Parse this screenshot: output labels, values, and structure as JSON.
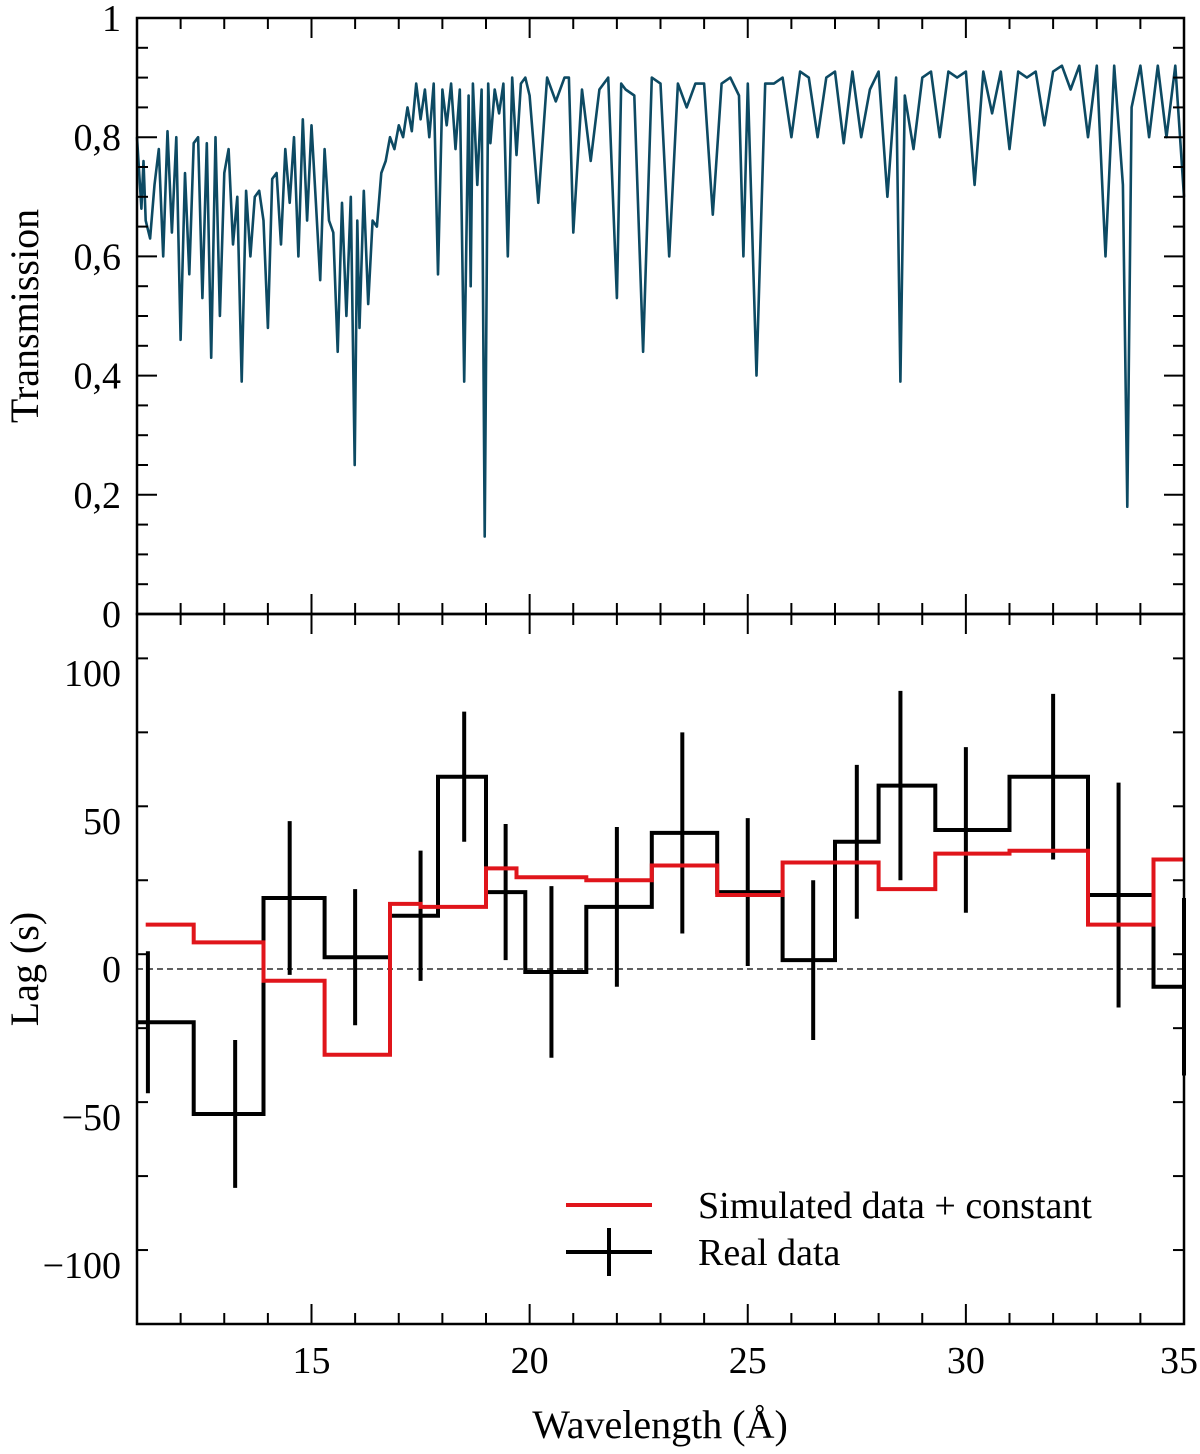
{
  "chart_data": [
    {
      "type": "line",
      "panel": "top",
      "ylabel": "Transmission",
      "xlim": [
        11,
        35
      ],
      "ylim": [
        0,
        1
      ],
      "yticks": [
        {
          "value": 0,
          "label": "0"
        },
        {
          "value": 0.2,
          "label": "0,2"
        },
        {
          "value": 0.4,
          "label": "0,4"
        },
        {
          "value": 0.6,
          "label": "0,6"
        },
        {
          "value": 0.8,
          "label": "0,8"
        },
        {
          "value": 1,
          "label": "1"
        }
      ],
      "series": [
        {
          "color": "#0d4a63",
          "x": [
            11.0,
            11.1,
            11.15,
            11.2,
            11.3,
            11.4,
            11.5,
            11.6,
            11.7,
            11.8,
            11.9,
            12.0,
            12.1,
            12.2,
            12.3,
            12.4,
            12.5,
            12.6,
            12.7,
            12.8,
            12.9,
            13.0,
            13.1,
            13.2,
            13.3,
            13.4,
            13.5,
            13.6,
            13.7,
            13.8,
            13.9,
            14.0,
            14.1,
            14.2,
            14.3,
            14.4,
            14.5,
            14.6,
            14.7,
            14.8,
            14.9,
            15.0,
            15.1,
            15.2,
            15.3,
            15.4,
            15.5,
            15.6,
            15.7,
            15.8,
            15.9,
            15.99,
            16.05,
            16.1,
            16.2,
            16.3,
            16.4,
            16.5,
            16.6,
            16.7,
            16.8,
            16.9,
            17.0,
            17.1,
            17.2,
            17.3,
            17.4,
            17.5,
            17.6,
            17.7,
            17.8,
            17.9,
            18.0,
            18.1,
            18.2,
            18.3,
            18.4,
            18.5,
            18.6,
            18.65,
            18.7,
            18.8,
            18.9,
            18.97,
            19.05,
            19.1,
            19.2,
            19.3,
            19.4,
            19.5,
            19.6,
            19.7,
            19.8,
            19.9,
            20.0,
            20.2,
            20.4,
            20.6,
            20.8,
            20.9,
            21.0,
            21.2,
            21.4,
            21.6,
            21.8,
            22.0,
            22.1,
            22.2,
            22.4,
            22.6,
            22.8,
            23.0,
            23.2,
            23.4,
            23.6,
            23.8,
            24.0,
            24.2,
            24.4,
            24.6,
            24.8,
            24.9,
            25.0,
            25.2,
            25.4,
            25.6,
            25.8,
            26.0,
            26.2,
            26.4,
            26.6,
            26.8,
            27.0,
            27.2,
            27.4,
            27.6,
            27.8,
            28.0,
            28.2,
            28.4,
            28.5,
            28.6,
            28.8,
            29.0,
            29.2,
            29.4,
            29.6,
            29.8,
            30.0,
            30.2,
            30.4,
            30.6,
            30.8,
            31.0,
            31.2,
            31.4,
            31.6,
            31.8,
            32.0,
            32.2,
            32.4,
            32.6,
            32.8,
            33.0,
            33.2,
            33.4,
            33.6,
            33.7,
            33.8,
            34.0,
            34.2,
            34.4,
            34.6,
            34.8,
            35.0
          ],
          "y": [
            0.8,
            0.68,
            0.76,
            0.66,
            0.63,
            0.72,
            0.78,
            0.6,
            0.81,
            0.64,
            0.8,
            0.46,
            0.74,
            0.57,
            0.79,
            0.8,
            0.53,
            0.79,
            0.43,
            0.8,
            0.5,
            0.74,
            0.78,
            0.62,
            0.7,
            0.39,
            0.71,
            0.6,
            0.7,
            0.71,
            0.66,
            0.48,
            0.73,
            0.74,
            0.62,
            0.78,
            0.69,
            0.8,
            0.6,
            0.83,
            0.66,
            0.82,
            0.69,
            0.56,
            0.78,
            0.66,
            0.64,
            0.44,
            0.69,
            0.5,
            0.7,
            0.25,
            0.66,
            0.48,
            0.71,
            0.52,
            0.66,
            0.65,
            0.74,
            0.76,
            0.8,
            0.78,
            0.82,
            0.8,
            0.85,
            0.81,
            0.89,
            0.83,
            0.88,
            0.8,
            0.89,
            0.57,
            0.88,
            0.82,
            0.89,
            0.78,
            0.88,
            0.39,
            0.87,
            0.55,
            0.89,
            0.72,
            0.88,
            0.13,
            0.89,
            0.79,
            0.88,
            0.84,
            0.89,
            0.6,
            0.9,
            0.77,
            0.89,
            0.9,
            0.87,
            0.69,
            0.9,
            0.86,
            0.9,
            0.9,
            0.64,
            0.88,
            0.76,
            0.88,
            0.9,
            0.53,
            0.89,
            0.88,
            0.87,
            0.44,
            0.9,
            0.89,
            0.6,
            0.89,
            0.85,
            0.89,
            0.89,
            0.67,
            0.89,
            0.9,
            0.87,
            0.6,
            0.89,
            0.4,
            0.89,
            0.89,
            0.9,
            0.8,
            0.91,
            0.9,
            0.8,
            0.9,
            0.91,
            0.79,
            0.91,
            0.8,
            0.88,
            0.91,
            0.7,
            0.9,
            0.39,
            0.87,
            0.78,
            0.9,
            0.91,
            0.8,
            0.91,
            0.9,
            0.91,
            0.72,
            0.91,
            0.84,
            0.91,
            0.78,
            0.91,
            0.9,
            0.91,
            0.82,
            0.91,
            0.92,
            0.88,
            0.92,
            0.8,
            0.92,
            0.6,
            0.92,
            0.72,
            0.18,
            0.85,
            0.92,
            0.8,
            0.92,
            0.8,
            0.92,
            0.7
          ]
        }
      ]
    },
    {
      "type": "line",
      "panel": "bottom",
      "xlabel": "Wavelength (Å)",
      "ylabel": "Lag (s)",
      "xlim": [
        11,
        35
      ],
      "ylim": [
        -120,
        120
      ],
      "xticks": [
        {
          "value": 15,
          "label": "15"
        },
        {
          "value": 20,
          "label": "20"
        },
        {
          "value": 25,
          "label": "25"
        },
        {
          "value": 30,
          "label": "30"
        },
        {
          "value": 35,
          "label": "35"
        }
      ],
      "yticks": [
        {
          "value": -100,
          "label": "−100"
        },
        {
          "value": -50,
          "label": "−50"
        },
        {
          "value": 0,
          "label": "0"
        },
        {
          "value": 50,
          "label": "50"
        },
        {
          "value": 100,
          "label": "100"
        }
      ],
      "reference_line": 0,
      "legend_position": "bottom-right",
      "series": [
        {
          "name": "Simulated data + constant",
          "color": "#e0151b",
          "style": "step",
          "bins": [
            {
              "x0": 11.2,
              "x1": 12.3,
              "y": 15
            },
            {
              "x0": 12.3,
              "x1": 13.9,
              "y": 9
            },
            {
              "x0": 13.9,
              "x1": 15.3,
              "y": -4
            },
            {
              "x0": 15.3,
              "x1": 16.8,
              "y": -29
            },
            {
              "x0": 16.8,
              "x1": 17.5,
              "y": 22
            },
            {
              "x0": 17.5,
              "x1": 19.0,
              "y": 21
            },
            {
              "x0": 19.0,
              "x1": 19.7,
              "y": 34
            },
            {
              "x0": 19.7,
              "x1": 21.3,
              "y": 31
            },
            {
              "x0": 21.3,
              "x1": 22.8,
              "y": 30
            },
            {
              "x0": 22.8,
              "x1": 24.3,
              "y": 35
            },
            {
              "x0": 24.3,
              "x1": 25.8,
              "y": 25
            },
            {
              "x0": 25.8,
              "x1": 28.0,
              "y": 36
            },
            {
              "x0": 28.0,
              "x1": 29.3,
              "y": 27
            },
            {
              "x0": 29.3,
              "x1": 31.0,
              "y": 39
            },
            {
              "x0": 31.0,
              "x1": 32.8,
              "y": 40
            },
            {
              "x0": 32.8,
              "x1": 34.3,
              "y": 15
            },
            {
              "x0": 34.3,
              "x1": 35.0,
              "y": 37
            }
          ]
        },
        {
          "name": "Real data",
          "color": "#000000",
          "style": "step-errorbar",
          "bins": [
            {
              "x0": 11.0,
              "x1": 12.3,
              "xc": 11.25,
              "y": -18,
              "err": 24
            },
            {
              "x0": 12.3,
              "x1": 13.9,
              "xc": 13.25,
              "y": -49,
              "err": 25
            },
            {
              "x0": 13.9,
              "x1": 15.3,
              "xc": 14.5,
              "y": 24,
              "err": 26
            },
            {
              "x0": 15.3,
              "x1": 16.8,
              "xc": 16.0,
              "y": 4,
              "err": 23
            },
            {
              "x0": 16.8,
              "x1": 17.9,
              "xc": 17.5,
              "y": 18,
              "err": 22
            },
            {
              "x0": 17.9,
              "x1": 19.0,
              "xc": 18.5,
              "y": 65,
              "err": 22
            },
            {
              "x0": 19.0,
              "x1": 19.9,
              "xc": 19.45,
              "y": 26,
              "err": 23
            },
            {
              "x0": 19.9,
              "x1": 21.3,
              "xc": 20.5,
              "y": -1,
              "err": 29
            },
            {
              "x0": 21.3,
              "x1": 22.8,
              "xc": 22.0,
              "y": 21,
              "err": 27
            },
            {
              "x0": 22.8,
              "x1": 24.3,
              "xc": 23.5,
              "y": 46,
              "err": 34
            },
            {
              "x0": 24.3,
              "x1": 25.8,
              "xc": 25.0,
              "y": 26,
              "err": 25
            },
            {
              "x0": 25.8,
              "x1": 27.0,
              "xc": 26.5,
              "y": 3,
              "err": 27
            },
            {
              "x0": 27.0,
              "x1": 28.0,
              "xc": 27.5,
              "y": 43,
              "err": 26
            },
            {
              "x0": 28.0,
              "x1": 29.3,
              "xc": 28.5,
              "y": 62,
              "err": 32
            },
            {
              "x0": 29.3,
              "x1": 31.0,
              "xc": 30.0,
              "y": 47,
              "err": 28
            },
            {
              "x0": 31.0,
              "x1": 32.8,
              "xc": 32.0,
              "y": 65,
              "err": 28
            },
            {
              "x0": 32.8,
              "x1": 34.3,
              "xc": 33.5,
              "y": 25,
              "err": 38
            },
            {
              "x0": 34.3,
              "x1": 35.0,
              "xc": 35.0,
              "y": -6,
              "err": 30
            }
          ]
        }
      ]
    }
  ]
}
